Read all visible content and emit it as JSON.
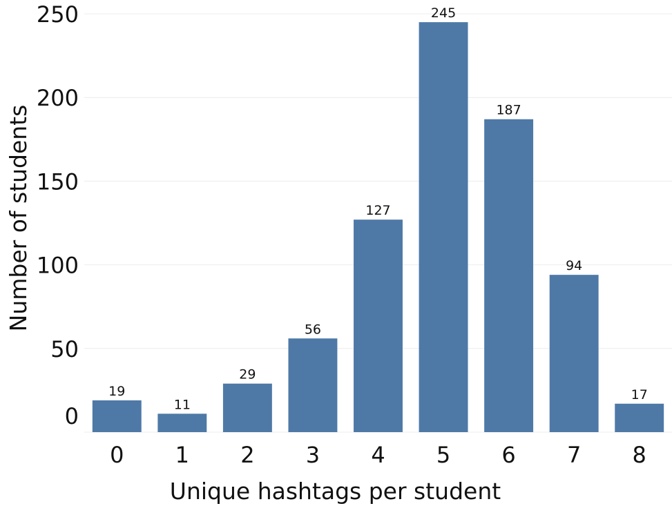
{
  "chart_data": {
    "type": "bar",
    "categories": [
      "0",
      "1",
      "2",
      "3",
      "4",
      "5",
      "6",
      "7",
      "8"
    ],
    "values": [
      19,
      11,
      29,
      56,
      127,
      245,
      187,
      94,
      17
    ],
    "xlabel": "Unique hashtags per student",
    "ylabel": "Number of students",
    "ylim": [
      0,
      250
    ],
    "yticks": [
      "0",
      "50",
      "100",
      "150",
      "200",
      "250"
    ],
    "grid": true,
    "bar_color": "#4e79a7",
    "data_labels": true
  }
}
